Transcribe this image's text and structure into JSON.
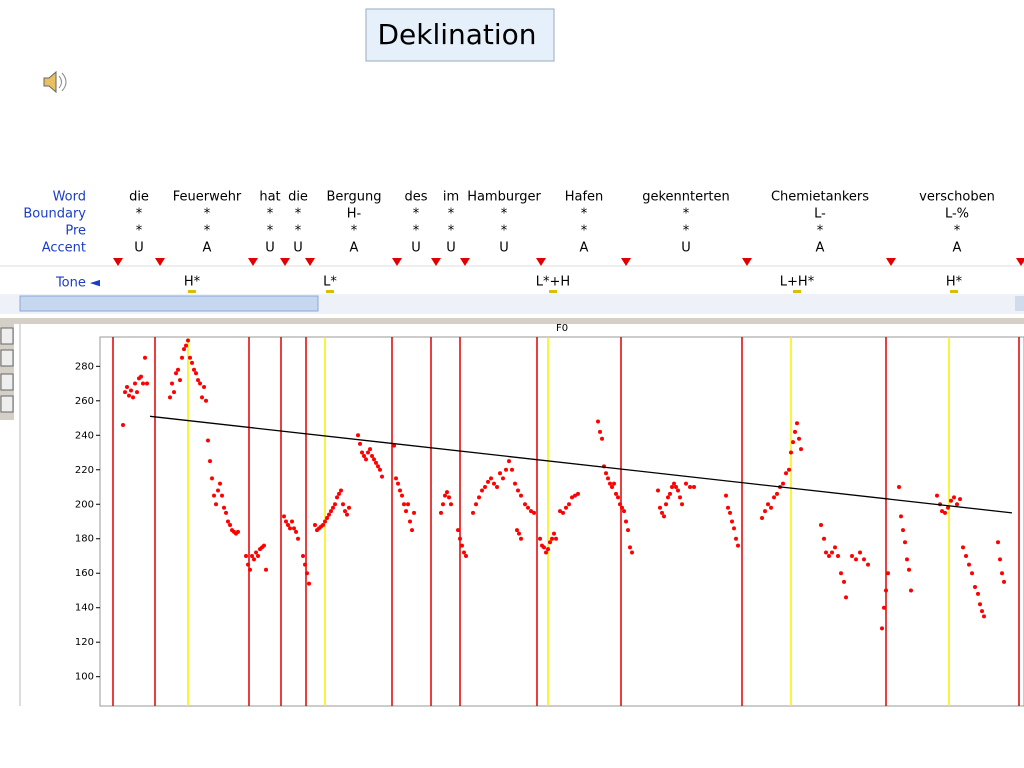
{
  "title": "Deklination",
  "tiers": {
    "labels": [
      "Word",
      "Boundary",
      "Pre",
      "Accent"
    ],
    "words": [
      "die",
      "Feuerwehr",
      "hat",
      "die",
      "Bergung",
      "des",
      "im",
      "Hamburger",
      "Hafen",
      "gekennterten",
      "Chemietankers",
      "verschoben"
    ],
    "boundary": [
      "*",
      "*",
      "*",
      "*",
      "H-",
      "*",
      "*",
      "*",
      "*",
      "*",
      "L-",
      "L-%"
    ],
    "pre": [
      "*",
      "*",
      "*",
      "*",
      "*",
      "*",
      "*",
      "*",
      "*",
      "*",
      "*",
      "*"
    ],
    "accent": [
      "U",
      "A",
      "U",
      "U",
      "A",
      "U",
      "U",
      "U",
      "A",
      "U",
      "A",
      "A"
    ]
  },
  "tone_label": "Tone ◄",
  "tones": [
    "H*",
    "L*",
    "L*+H",
    "L+H*",
    "H*"
  ],
  "chart_data": {
    "type": "scatter",
    "title": "F0",
    "x": [
      23,
      25,
      27,
      29,
      31,
      33,
      35,
      37,
      39,
      41,
      43,
      45,
      47,
      70,
      72,
      74,
      76,
      78,
      80,
      82,
      84,
      86,
      88,
      90,
      92,
      94,
      96,
      98,
      100,
      102,
      104,
      106,
      108,
      110,
      112,
      114,
      116,
      118,
      120,
      122,
      124,
      126,
      128,
      130,
      132,
      134,
      136,
      138,
      146,
      148,
      150,
      152,
      154,
      156,
      158,
      160,
      162,
      164,
      166,
      184,
      186,
      188,
      190,
      192,
      194,
      196,
      198,
      203,
      205,
      207,
      209,
      215,
      217,
      219,
      221,
      223,
      225,
      227,
      229,
      231,
      233,
      235,
      237,
      239,
      241,
      243,
      245,
      247,
      249,
      258,
      260,
      262,
      264,
      266,
      268,
      270,
      272,
      274,
      276,
      278,
      280,
      282,
      294,
      296,
      298,
      300,
      302,
      304,
      306,
      308,
      310,
      312,
      314,
      341,
      343,
      345,
      347,
      349,
      351,
      358,
      360,
      362,
      364,
      366,
      373,
      376,
      379,
      382,
      385,
      388,
      391,
      394,
      397,
      400,
      403,
      406,
      409,
      412,
      415,
      418,
      421,
      417,
      419,
      421,
      425,
      428,
      431,
      434,
      440,
      442,
      444,
      446,
      448,
      450,
      452,
      454,
      456,
      460,
      463,
      466,
      469,
      472,
      475,
      478,
      498,
      500,
      502,
      504,
      506,
      508,
      510,
      512,
      514,
      516,
      518,
      520,
      522,
      524,
      526,
      528,
      530,
      532,
      558,
      560,
      562,
      564,
      566,
      568,
      570,
      572,
      574,
      576,
      578,
      580,
      582,
      586,
      590,
      594,
      626,
      628,
      630,
      632,
      634,
      636,
      638,
      662,
      665,
      668,
      671,
      674,
      677,
      680,
      683,
      686,
      689,
      691,
      693,
      695,
      697,
      699,
      701,
      721,
      724,
      726,
      729,
      732,
      735,
      738,
      741,
      744,
      746,
      752,
      756,
      760,
      764,
      768,
      782,
      784,
      786,
      788,
      799,
      801,
      803,
      805,
      807,
      809,
      811,
      837,
      840,
      842,
      845,
      848,
      851,
      854,
      857,
      860,
      863,
      866,
      869,
      872,
      875,
      878,
      880,
      882,
      884,
      898,
      900,
      902,
      904
    ],
    "values": [
      246,
      265,
      268,
      263,
      266,
      262,
      270,
      265,
      273,
      274,
      270,
      285,
      270,
      262,
      270,
      265,
      276,
      278,
      272,
      285,
      290,
      292,
      295,
      285,
      282,
      278,
      276,
      272,
      270,
      262,
      268,
      260,
      237,
      225,
      215,
      205,
      200,
      208,
      212,
      205,
      198,
      195,
      190,
      188,
      185,
      184,
      183,
      184,
      170,
      165,
      162,
      170,
      168,
      172,
      170,
      174,
      175,
      176,
      162,
      193,
      190,
      188,
      186,
      190,
      186,
      184,
      180,
      170,
      165,
      160,
      154,
      188,
      185,
      186,
      187,
      188,
      190,
      192,
      194,
      196,
      198,
      200,
      204,
      206,
      208,
      200,
      196,
      194,
      198,
      240,
      235,
      230,
      228,
      226,
      230,
      232,
      228,
      226,
      224,
      222,
      220,
      216,
      234,
      215,
      212,
      208,
      205,
      200,
      196,
      200,
      190,
      185,
      195,
      195,
      200,
      205,
      207,
      204,
      200,
      185,
      180,
      176,
      172,
      170,
      195,
      200,
      204,
      208,
      210,
      213,
      215,
      212,
      210,
      218,
      215,
      220,
      225,
      220,
      212,
      208,
      205,
      185,
      183,
      180,
      200,
      198,
      196,
      195,
      180,
      176,
      175,
      172,
      174,
      178,
      180,
      183,
      180,
      196,
      195,
      198,
      200,
      204,
      205,
      206,
      248,
      242,
      238,
      222,
      218,
      215,
      212,
      210,
      212,
      206,
      204,
      200,
      198,
      196,
      190,
      185,
      175,
      172,
      208,
      198,
      195,
      193,
      200,
      204,
      206,
      210,
      212,
      210,
      208,
      204,
      200,
      212,
      210,
      210,
      205,
      198,
      195,
      190,
      186,
      180,
      176,
      192,
      196,
      200,
      198,
      204,
      206,
      210,
      212,
      218,
      220,
      230,
      236,
      242,
      247,
      238,
      232,
      188,
      180,
      172,
      170,
      172,
      175,
      170,
      160,
      155,
      146,
      170,
      168,
      172,
      168,
      165,
      128,
      140,
      150,
      160,
      210,
      193,
      185,
      178,
      168,
      162,
      150,
      205,
      200,
      196,
      195,
      198,
      202,
      204,
      200,
      203,
      175,
      170,
      165,
      160,
      152,
      148,
      142,
      138,
      135,
      178,
      168,
      160,
      155
    ],
    "color": "#ff0000",
    "xlim": [
      0,
      924
    ],
    "ylim": [
      83,
      297
    ],
    "yticks": [
      100,
      120,
      140,
      160,
      180,
      200,
      220,
      240,
      260,
      280
    ],
    "boundaries": [
      13,
      55,
      149,
      181,
      206,
      292,
      331,
      360,
      437,
      521,
      642,
      786,
      919
    ],
    "boundary_color": "#e00000",
    "tone_marks": [
      88,
      225,
      448,
      691,
      849
    ],
    "tone_color": "#f5f000",
    "trend": {
      "x": [
        50,
        912
      ],
      "values": [
        251,
        195
      ]
    }
  }
}
